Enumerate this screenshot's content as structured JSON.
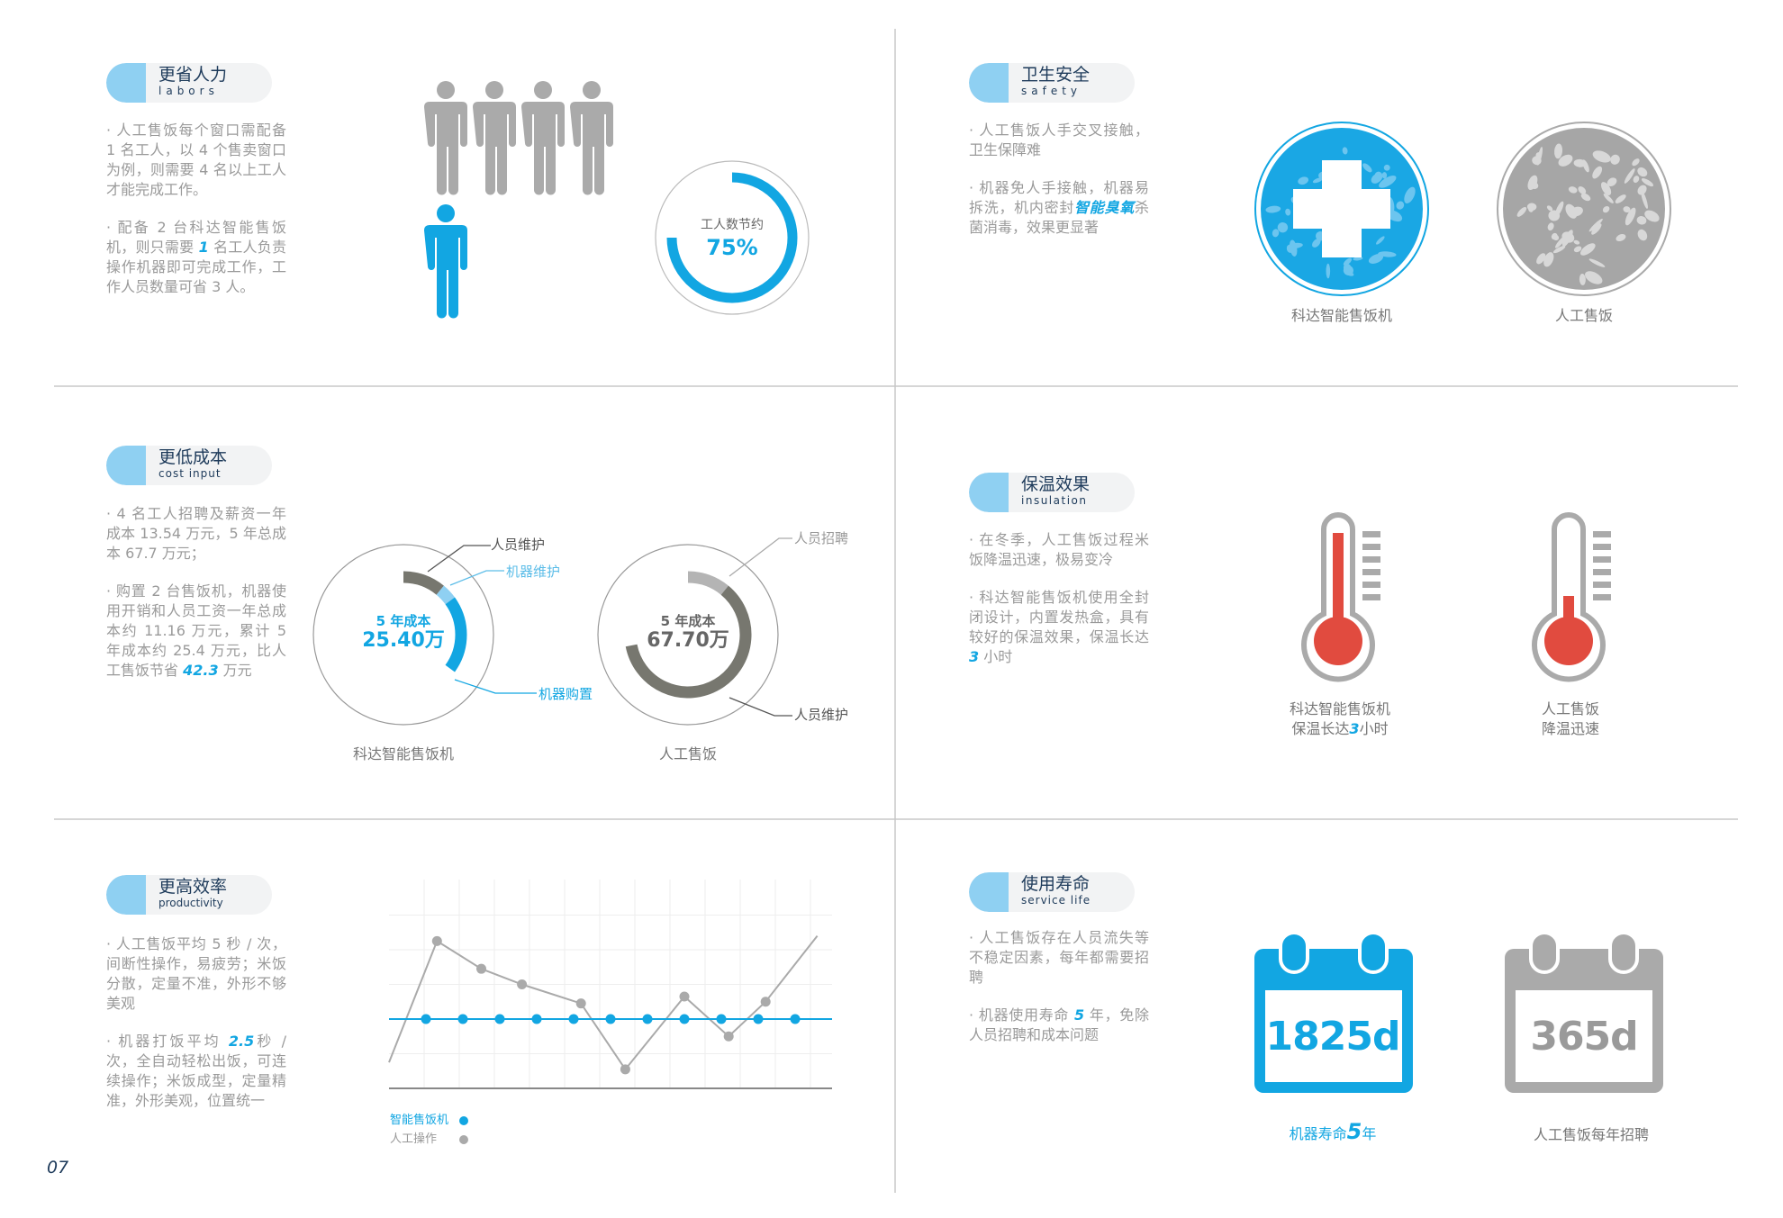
{
  "colors": {
    "accent": "#12a6e2",
    "accent_light": "#8fd0f2",
    "gray": "#aaaaaa",
    "dark_gray": "#77776f",
    "red": "#e14b3f",
    "navy": "#1d3a5a"
  },
  "page_number": "07",
  "labors": {
    "title": "更省人力",
    "subtitle": "labors",
    "p1": "· 人工售饭每个窗口需配备 1 名工人，以 4 个售卖窗口为例，则需要 4 名以上工人才能完成工作。",
    "p2": [
      "· 配备 2 台科达智能售饭机，则只需要 ",
      "1",
      " 名工人负责操作机器即可完成工作，工作人员数量可省 3 人。"
    ],
    "ring_label": "工人数节约",
    "ring_value": "75%",
    "ring_fraction": 0.75,
    "icons": {
      "manual_workers": 4,
      "machine_workers": 1
    }
  },
  "safety": {
    "title": "卫生安全",
    "subtitle": "safety",
    "p1": "· 人工售饭人手交叉接触，卫生保障难",
    "p2": [
      "· 机器免人手接触，机器易拆洗，机内密封",
      "智能臭氧",
      "杀菌消毒，效果更显著"
    ],
    "cap_machine": "科达智能售饭机",
    "cap_manual": "人工售饭"
  },
  "cost": {
    "title": "更低成本",
    "subtitle": "cost input",
    "p1": "· 4 名工人招聘及薪资一年成本 13.54 万元，5 年总成本 67.7 万元；",
    "p2": [
      "· 购置 2 台售饭机，机器使用开销和人员工资一年总成本约 11.16 万元，累计 5 年成本约 25.4 万元，比人工售饭节省 ",
      "42.3",
      " 万元"
    ],
    "machine": {
      "center_title": "5 年成本",
      "center_value": "25.40万",
      "caption": "科达智能售饭机",
      "segments": [
        {
          "label": "人员维护",
          "fraction": 0.11,
          "color": "#77776f"
        },
        {
          "label": "机器维护",
          "fraction": 0.04,
          "color": "#8fd0f2"
        },
        {
          "label": "机器购置",
          "fraction": 0.2,
          "color": "#12a6e2"
        }
      ]
    },
    "manual": {
      "center_title": "5 年成本",
      "center_value": "67.70万",
      "caption": "人工售饭",
      "segments": [
        {
          "label": "人员招聘",
          "fraction": 0.11,
          "color": "#b4b4b4"
        },
        {
          "label": "人员维护",
          "fraction": 0.61,
          "color": "#77776f"
        }
      ]
    }
  },
  "insulation": {
    "title": "保温效果",
    "subtitle": "insulation",
    "p1": "· 在冬季，人工售饭过程米饭降温迅速，极易变冷",
    "p2": [
      "· 科达智能售饭机使用全封闭设计，内置发热盒，具有较好的保温效果，保温长达 ",
      "3",
      " 小时"
    ],
    "machine": {
      "cap1": "科达智能售饭机",
      "cap2": [
        "保温长达",
        "3",
        "小时"
      ],
      "level": 0.9
    },
    "manual": {
      "cap1": "人工售饭",
      "cap2": "降温迅速",
      "level": 0.2
    }
  },
  "productivity": {
    "title": "更高效率",
    "subtitle": "productivity",
    "p1": "· 人工售饭平均 5 秒 / 次，间断性操作，易疲劳；米饭分散，定量不准，外形不够美观",
    "p2": [
      "· 机器打饭平均 ",
      "2.5",
      "秒 / 次，全自动轻松出饭，可连续操作；米饭成型，定量精准，外形美观，位置统一"
    ]
  },
  "service_life": {
    "title": "使用寿命",
    "subtitle": "service life",
    "p1": "· 人工售饭存在人员流失等不稳定因素，每年都需要招聘",
    "p2": [
      "· 机器使用寿命 ",
      "5",
      " 年，免除人员招聘和成本问题"
    ],
    "machine": {
      "value": "1825d",
      "cap": [
        "机器寿命",
        "5",
        "年"
      ]
    },
    "manual": {
      "value": "365d",
      "cap": "人工售饭每年招聘"
    }
  },
  "chart_data": {
    "type": "line",
    "title": "",
    "xlabel": "",
    "ylabel": "",
    "grid": true,
    "legend": "bottom-left",
    "ylim": [
      0,
      5
    ],
    "series": [
      {
        "name": "智能售饭机",
        "color": "#12a6e2",
        "x": [
          1,
          2,
          3,
          4,
          5,
          6,
          7,
          8,
          9,
          10,
          11
        ],
        "values": [
          2,
          2,
          2,
          2,
          2,
          2,
          2,
          2,
          2,
          2,
          2
        ],
        "markers": [
          true,
          true,
          true,
          true,
          true,
          true,
          true,
          true,
          true,
          true,
          true
        ]
      },
      {
        "name": "人工操作",
        "color": "#aaaaaa",
        "x": [
          0,
          1.3,
          2.5,
          3.6,
          5.2,
          6.4,
          8.0,
          9.2,
          10.2,
          11.6
        ],
        "values": [
          0.75,
          4.25,
          3.45,
          3.0,
          2.45,
          0.55,
          2.65,
          1.5,
          2.5,
          4.4
        ],
        "markers": [
          false,
          true,
          true,
          true,
          true,
          true,
          true,
          true,
          true,
          false
        ]
      }
    ]
  }
}
